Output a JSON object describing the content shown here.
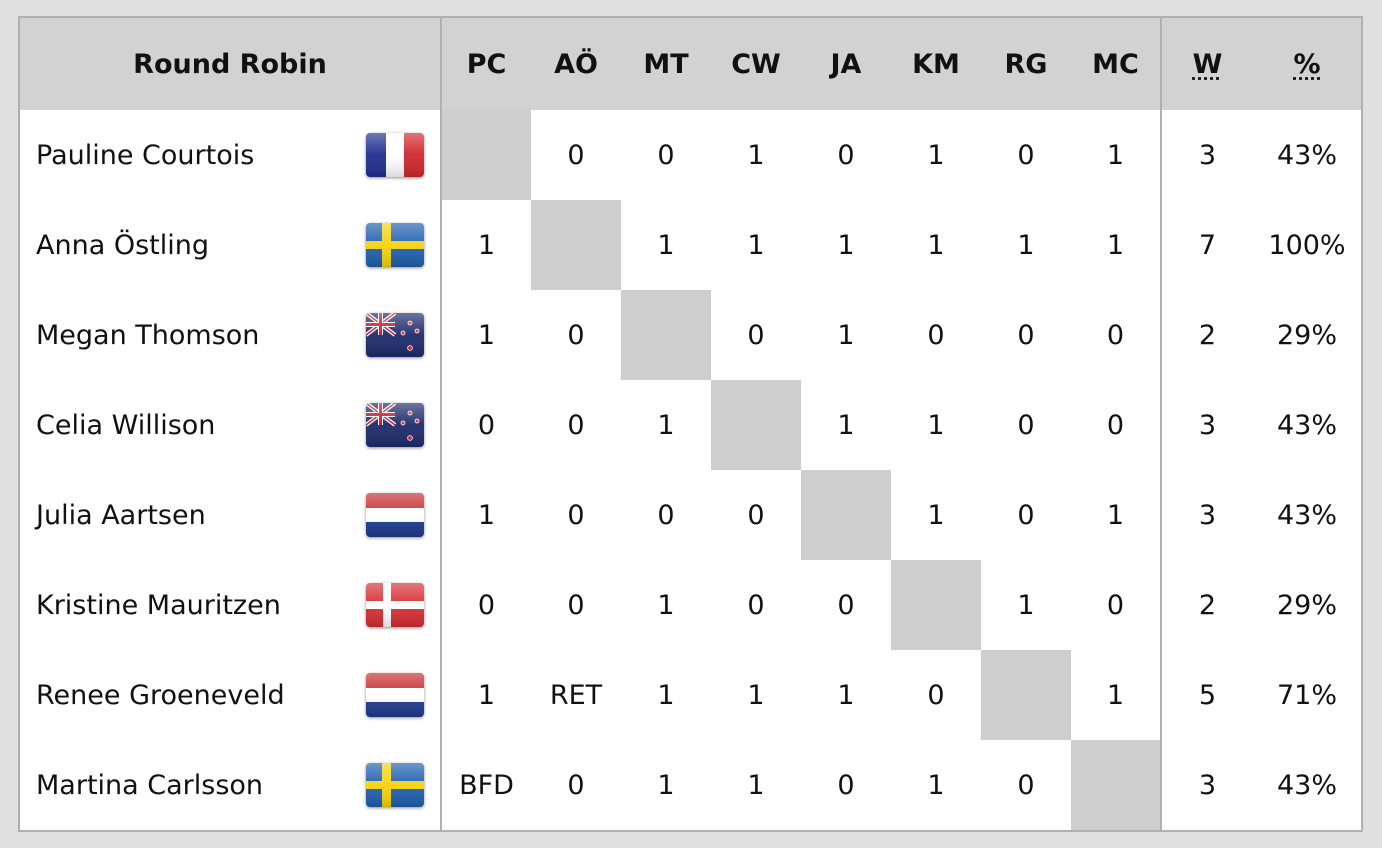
{
  "table": {
    "header": [
      "Round Robin",
      "PC",
      "AÖ",
      "MT",
      "CW",
      "JA",
      "KM",
      "RG",
      "MC",
      "W",
      "%"
    ],
    "rows": [
      [
        "Pauline Courtois",
        null,
        "0",
        "0",
        "1",
        "0",
        "1",
        "0",
        "1",
        "3",
        "43%"
      ],
      [
        "Anna Östling",
        "1",
        null,
        "1",
        "1",
        "1",
        "1",
        "1",
        "1",
        "7",
        "100%"
      ],
      [
        "Megan Thomson",
        "1",
        "0",
        null,
        "0",
        "1",
        "0",
        "0",
        "0",
        "2",
        "29%"
      ],
      [
        "Celia Willison",
        "0",
        "0",
        "1",
        null,
        "1",
        "1",
        "0",
        "0",
        "3",
        "43%"
      ],
      [
        "Julia Aartsen",
        "1",
        "0",
        "0",
        "0",
        null,
        "1",
        "0",
        "1",
        "3",
        "43%"
      ],
      [
        "Kristine Mauritzen",
        "0",
        "0",
        "1",
        "0",
        "0",
        null,
        "1",
        "0",
        "2",
        "29%"
      ],
      [
        "Renee Groeneveld",
        "1",
        "RET",
        "1",
        "1",
        "1",
        "0",
        null,
        "1",
        "5",
        "71%"
      ],
      [
        "Martina Carlsson",
        "BFD",
        "0",
        "1",
        "1",
        "0",
        "1",
        "0",
        null,
        "3",
        "43%"
      ]
    ]
  }
}
